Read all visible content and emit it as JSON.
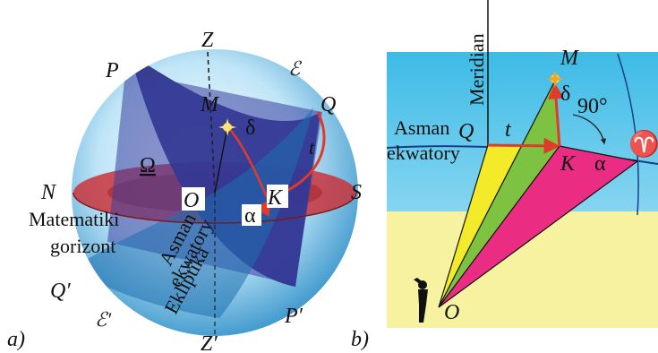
{
  "panel_a": {
    "panel_label": "a)",
    "points": {
      "zenith": "Z",
      "nadir": "Z′",
      "pole_north": "P",
      "pole_south": "P′",
      "north": "N",
      "south": "S",
      "equator_top": "Q",
      "equator_bottom": "Q′",
      "ecliptic_top": "ℰ",
      "ecliptic_bottom": "ℰ′",
      "star": "M",
      "center": "O",
      "foot": "K"
    },
    "greek": {
      "delta": "δ",
      "alpha": "α",
      "t": "t",
      "omega": "Ω"
    },
    "labels": {
      "horizon_1": "Matematiki",
      "horizon_2": "gorizont",
      "equator_1": "Asman",
      "equator_2": "ekwatory",
      "ecliptic": "Ekliptika"
    },
    "colors": {
      "equator": "#2c2f86",
      "horizon": "#c8343c",
      "arrow": "#e03a2a",
      "sphere": "#9fd3ee"
    }
  },
  "panel_b": {
    "panel_label": "b)",
    "points": {
      "star": "M",
      "equator_q": "Q",
      "foot": "K",
      "observer": "O",
      "vernal": "♈"
    },
    "greek": {
      "delta": "δ",
      "alpha": "α",
      "t": "t"
    },
    "labels": {
      "meridian": "Meridian",
      "equator_1": "Asman",
      "equator_2": "ekwatory",
      "angle": "90°"
    },
    "colors": {
      "sky": "#4ec4ea",
      "ground": "#f7f2a0",
      "triangle_yellow": "#f3ea2a",
      "triangle_green": "#7ec242",
      "triangle_magenta": "#ea2d82"
    }
  }
}
